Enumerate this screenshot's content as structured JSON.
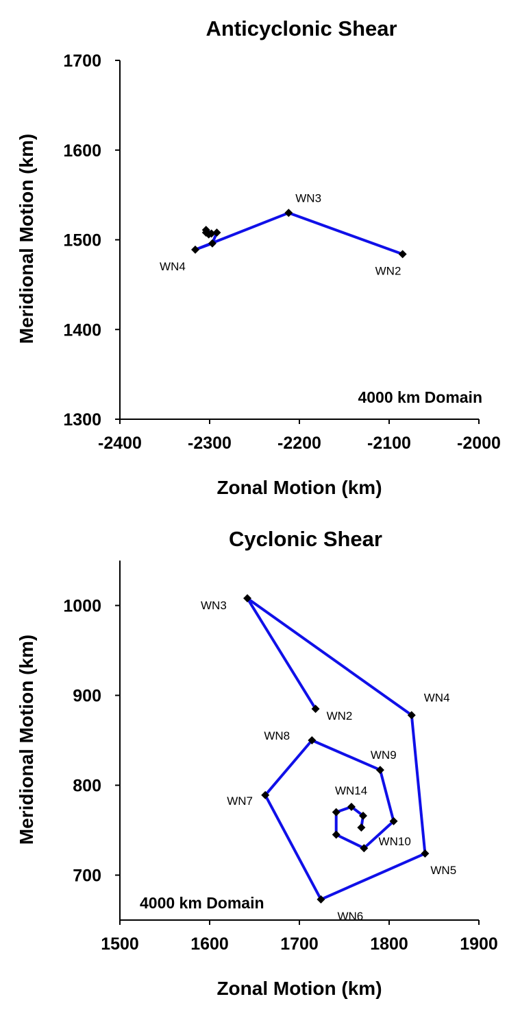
{
  "chart_data": [
    {
      "type": "line",
      "title": "Anticyclonic Shear",
      "xlabel": "Zonal Motion (km)",
      "ylabel": "Meridional Motion (km)",
      "xlim": [
        -2400,
        -2000
      ],
      "ylim": [
        1300,
        1700
      ],
      "xticks": [
        "-2400",
        "-2300",
        "-2200",
        "-2100",
        "-2000"
      ],
      "yticks": [
        "1300",
        "1400",
        "1500",
        "1600",
        "1700"
      ],
      "annotation": "4000 km Domain",
      "line_color": "#1010e8",
      "marker_color": "#000000",
      "series": [
        {
          "x": [
            -2085,
            -2212,
            -2316,
            -2297,
            -2292,
            -2301,
            -2304,
            -2298,
            -2304
          ],
          "y": [
            1484,
            1530,
            1489,
            1496,
            1508,
            1506,
            1511,
            1507,
            1508
          ]
        }
      ],
      "labels": [
        {
          "text": "WN2",
          "x": -2085,
          "y": 1484
        },
        {
          "text": "WN3",
          "x": -2212,
          "y": 1530
        },
        {
          "text": "WN4",
          "x": -2316,
          "y": 1489
        }
      ]
    },
    {
      "type": "line",
      "title": "Cyclonic Shear",
      "xlabel": "Zonal Motion (km)",
      "ylabel": "Meridional Motion (km)",
      "xlim": [
        1500,
        1900
      ],
      "ylim": [
        650,
        1050
      ],
      "xticks": [
        "1500",
        "1600",
        "1700",
        "1800",
        "1900"
      ],
      "yticks": [
        "700",
        "800",
        "900",
        "1000"
      ],
      "annotation": "4000 km Domain",
      "line_color": "#1010e8",
      "marker_color": "#000000",
      "series": [
        {
          "x": [
            1718,
            1642,
            1825,
            1840,
            1724,
            1662,
            1714,
            1790,
            1805,
            1772,
            1741,
            1741,
            1758,
            1771,
            1769
          ],
          "y": [
            885,
            1008,
            878,
            724,
            673,
            789,
            850,
            817,
            760,
            730,
            745,
            770,
            776,
            766,
            753
          ]
        }
      ],
      "labels": [
        {
          "text": "WN2",
          "x": 1718,
          "y": 885
        },
        {
          "text": "WN3",
          "x": 1642,
          "y": 1008
        },
        {
          "text": "WN4",
          "x": 1825,
          "y": 878
        },
        {
          "text": "WN5",
          "x": 1840,
          "y": 724
        },
        {
          "text": "WN6",
          "x": 1724,
          "y": 673
        },
        {
          "text": "WN7",
          "x": 1662,
          "y": 789
        },
        {
          "text": "WN8",
          "x": 1714,
          "y": 850
        },
        {
          "text": "WN9",
          "x": 1790,
          "y": 817
        },
        {
          "text": "WN10",
          "x": 1805,
          "y": 760
        },
        {
          "text": "WN14",
          "x": 1758,
          "y": 776
        }
      ]
    }
  ]
}
